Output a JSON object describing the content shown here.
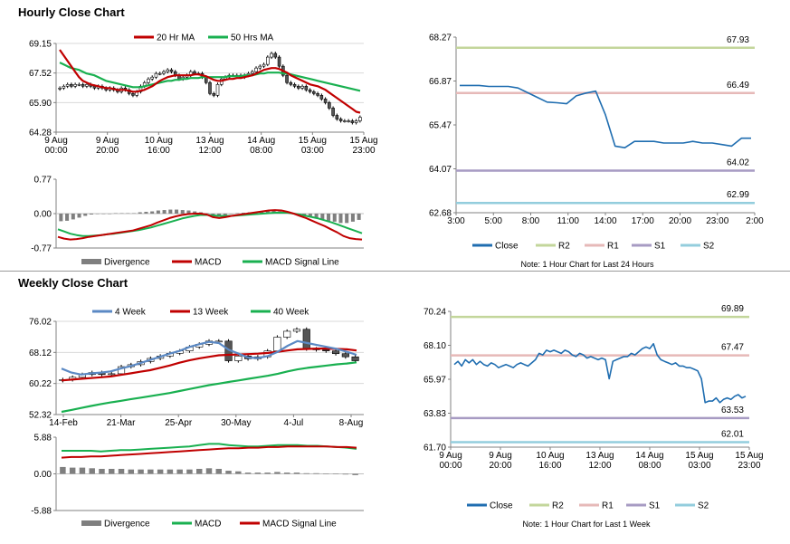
{
  "page": {
    "hourly_title": "Hourly Close Chart",
    "weekly_title": "Weekly Close Chart"
  },
  "colors": {
    "up_candle": "#ffffff",
    "down_candle": "#555555",
    "ma20": "#c00000",
    "ma50": "#19b050",
    "ma4": "#5b89c4",
    "ma13": "#c00000",
    "ma40": "#19b050",
    "macd_red": "#c00000",
    "macd_green": "#19b050",
    "divergence": "#7f7f7f",
    "close": "#1f6db0",
    "r2": "#c3d69b",
    "r1": "#e6b9b8",
    "s1": "#a79bc3",
    "s2": "#93cddd"
  },
  "chart_data": [
    {
      "id": "hourly_candle",
      "type": "candlestick",
      "ylim": [
        64.28,
        69.15
      ],
      "yticks": [
        "69.15",
        "67.52",
        "65.90",
        "64.28"
      ],
      "xticks": [
        "9 Aug\n00:00",
        "9 Aug\n20:00",
        "10 Aug\n16:00",
        "13 Aug\n12:00",
        "14 Aug\n08:00",
        "15 Aug\n03:00",
        "15 Aug\n23:00"
      ],
      "legend": [
        "20 Hr MA",
        "50 Hrs MA"
      ],
      "closes": [
        66.7,
        66.8,
        66.9,
        66.8,
        66.9,
        66.9,
        66.8,
        66.9,
        66.8,
        66.7,
        66.8,
        66.7,
        66.6,
        66.7,
        66.6,
        66.5,
        66.7,
        66.6,
        66.4,
        66.3,
        66.5,
        66.8,
        67.0,
        67.2,
        67.3,
        67.5,
        67.5,
        67.6,
        67.7,
        67.6,
        67.4,
        67.2,
        67.3,
        67.4,
        67.6,
        67.5,
        67.5,
        67.3,
        67.0,
        66.4,
        66.3,
        66.9,
        67.2,
        67.3,
        67.4,
        67.4,
        67.4,
        67.3,
        67.4,
        67.5,
        67.6,
        67.8,
        67.9,
        68.0,
        68.4,
        68.6,
        68.4,
        67.9,
        67.4,
        67.0,
        66.9,
        66.8,
        66.7,
        66.8,
        66.6,
        66.5,
        66.4,
        66.3,
        66.1,
        65.9,
        65.6,
        65.2,
        65.0,
        64.9,
        64.9,
        64.9,
        64.8,
        64.9,
        65.1
      ],
      "ma20": [
        68.8,
        68.5,
        68.2,
        67.9,
        67.6,
        67.3,
        67.1,
        67.0,
        66.9,
        66.85,
        66.8,
        66.75,
        66.7,
        66.7,
        66.65,
        66.6,
        66.6,
        66.6,
        66.55,
        66.5,
        66.5,
        66.55,
        66.6,
        66.7,
        66.8,
        66.95,
        67.1,
        67.2,
        67.3,
        67.35,
        67.4,
        67.4,
        67.4,
        67.4,
        67.4,
        67.45,
        67.45,
        67.4,
        67.35,
        67.25,
        67.15,
        67.1,
        67.1,
        67.15,
        67.2,
        67.2,
        67.25,
        67.25,
        67.3,
        67.35,
        67.4,
        67.5,
        67.6,
        67.7,
        67.75,
        67.8,
        67.8,
        67.75,
        67.65,
        67.55,
        67.4,
        67.3,
        67.2,
        67.1,
        67.0,
        66.9,
        66.85,
        66.8,
        66.7,
        66.6,
        66.45,
        66.3,
        66.15,
        66.0,
        65.85,
        65.7,
        65.55,
        65.4,
        65.35
      ],
      "ma50": [
        68.1,
        68.0,
        67.9,
        67.8,
        67.75,
        67.7,
        67.6,
        67.5,
        67.45,
        67.4,
        67.3,
        67.2,
        67.1,
        67.05,
        67.0,
        66.95,
        66.9,
        66.85,
        66.8,
        66.75,
        66.75,
        66.75,
        66.8,
        66.85,
        66.9,
        66.95,
        67.0,
        67.05,
        67.1,
        67.1,
        67.15,
        67.15,
        67.2,
        67.2,
        67.25,
        67.25,
        67.25,
        67.3,
        67.3,
        67.3,
        67.3,
        67.3,
        67.3,
        67.3,
        67.35,
        67.35,
        67.35,
        67.35,
        67.4,
        67.4,
        67.4,
        67.45,
        67.5,
        67.5,
        67.55,
        67.55,
        67.55,
        67.55,
        67.5,
        67.5,
        67.45,
        67.4,
        67.35,
        67.3,
        67.25,
        67.2,
        67.15,
        67.1,
        67.05,
        67.0,
        66.95,
        66.9,
        66.85,
        66.8,
        66.75,
        66.7,
        66.65,
        66.6,
        66.55
      ]
    },
    {
      "id": "hourly_macd",
      "type": "line",
      "ylim": [
        -0.77,
        0.77
      ],
      "yticks": [
        "0.77",
        "0.00",
        "-0.77"
      ],
      "legend": [
        "Divergence",
        "MACD",
        "MACD Signal Line"
      ],
      "macd": [
        -0.52,
        -0.56,
        -0.58,
        -0.57,
        -0.55,
        -0.52,
        -0.5,
        -0.48,
        -0.46,
        -0.44,
        -0.42,
        -0.4,
        -0.38,
        -0.34,
        -0.3,
        -0.26,
        -0.2,
        -0.15,
        -0.1,
        -0.06,
        -0.03,
        -0.01,
        0.0,
        0.0,
        -0.02,
        -0.08,
        -0.1,
        -0.08,
        -0.05,
        -0.03,
        -0.01,
        0.01,
        0.03,
        0.05,
        0.07,
        0.08,
        0.07,
        0.04,
        0.0,
        -0.05,
        -0.1,
        -0.16,
        -0.22,
        -0.28,
        -0.35,
        -0.42,
        -0.5,
        -0.55,
        -0.57,
        -0.58
      ],
      "signal": [
        -0.35,
        -0.4,
        -0.45,
        -0.48,
        -0.5,
        -0.5,
        -0.49,
        -0.48,
        -0.46,
        -0.45,
        -0.43,
        -0.41,
        -0.39,
        -0.37,
        -0.34,
        -0.31,
        -0.27,
        -0.23,
        -0.19,
        -0.15,
        -0.11,
        -0.08,
        -0.05,
        -0.03,
        -0.03,
        -0.04,
        -0.05,
        -0.05,
        -0.05,
        -0.04,
        -0.03,
        -0.02,
        -0.01,
        0.0,
        0.01,
        0.02,
        0.02,
        0.02,
        0.0,
        -0.02,
        -0.05,
        -0.08,
        -0.11,
        -0.15,
        -0.19,
        -0.24,
        -0.29,
        -0.34,
        -0.39,
        -0.44
      ],
      "divergence": [
        -0.17,
        -0.16,
        -0.13,
        -0.09,
        -0.05,
        -0.02,
        -0.01,
        0.0,
        0.0,
        0.01,
        0.01,
        0.01,
        0.01,
        0.03,
        0.04,
        0.05,
        0.07,
        0.08,
        0.09,
        0.09,
        0.08,
        0.07,
        0.05,
        0.03,
        0.01,
        -0.04,
        -0.05,
        -0.03,
        0.0,
        0.01,
        0.02,
        0.03,
        0.04,
        0.05,
        0.06,
        0.06,
        0.05,
        0.02,
        0.0,
        -0.03,
        -0.05,
        -0.08,
        -0.11,
        -0.13,
        -0.16,
        -0.18,
        -0.21,
        -0.21,
        -0.18,
        -0.14
      ]
    },
    {
      "id": "hourly_pivot",
      "type": "line",
      "ylim": [
        62.68,
        68.27
      ],
      "yticks": [
        "68.27",
        "66.87",
        "65.47",
        "64.07",
        "62.68"
      ],
      "xticks": [
        "3:00",
        "5:00",
        "8:00",
        "11:00",
        "14:00",
        "17:00",
        "20:00",
        "23:00",
        "2:00"
      ],
      "legend": [
        "Close",
        "R2",
        "R1",
        "S1",
        "S2"
      ],
      "note": "Note: 1 Hour Chart for Last 24 Hours",
      "levels": {
        "R2": 67.93,
        "R1": 66.49,
        "S1": 64.02,
        "S2": 62.99
      },
      "level_labels": {
        "R2": "67.93",
        "R1": "66.49",
        "S1": "64.02",
        "S2": "62.99"
      },
      "close": [
        66.73,
        66.73,
        66.73,
        66.7,
        66.7,
        66.7,
        66.65,
        66.5,
        66.35,
        66.2,
        66.18,
        66.15,
        66.4,
        66.49,
        66.55,
        65.8,
        64.8,
        64.75,
        64.95,
        64.95,
        64.95,
        64.9,
        64.9,
        64.9,
        64.95,
        64.9,
        64.9,
        64.85,
        64.8,
        65.05,
        65.05
      ]
    },
    {
      "id": "weekly_candle",
      "type": "candlestick",
      "ylim": [
        52.32,
        76.02
      ],
      "yticks": [
        "76.02",
        "68.12",
        "60.22",
        "52.32"
      ],
      "xticks": [
        "14-Feb",
        "21-Mar",
        "25-Apr",
        "30-May",
        "4-Jul",
        "8-Aug"
      ],
      "legend": [
        "4 Week",
        "13 Week",
        "40 Week"
      ],
      "closes": [
        61.2,
        61.8,
        62.5,
        63.0,
        62.5,
        62.7,
        64.5,
        65.0,
        65.8,
        66.6,
        67.2,
        67.9,
        68.5,
        69.5,
        70.2,
        71.0,
        71.0,
        66.0,
        67.2,
        66.5,
        67.0,
        68.5,
        72.0,
        73.5,
        74.0,
        69.0,
        68.8,
        68.5,
        67.8,
        67.0,
        66.0
      ],
      "ma4": [
        64.0,
        63.0,
        62.5,
        62.8,
        63.0,
        63.3,
        64.0,
        64.6,
        65.4,
        66.2,
        67.0,
        67.8,
        68.5,
        69.5,
        70.2,
        70.8,
        70.5,
        68.8,
        67.8,
        66.8,
        66.7,
        67.2,
        68.3,
        69.8,
        71.0,
        70.5,
        70.0,
        69.5,
        69.0,
        68.3,
        67.5
      ],
      "ma13": [
        61.0,
        61.2,
        61.4,
        61.6,
        61.8,
        62.0,
        62.4,
        62.8,
        63.2,
        63.6,
        64.2,
        64.8,
        65.5,
        66.1,
        66.6,
        67.0,
        67.4,
        67.5,
        67.6,
        67.7,
        67.8,
        68.0,
        68.3,
        68.6,
        68.9,
        69.0,
        69.1,
        69.1,
        69.0,
        68.9,
        68.6
      ],
      "ma40": [
        53.0,
        53.5,
        54.0,
        54.5,
        55.0,
        55.4,
        55.8,
        56.2,
        56.6,
        57.0,
        57.4,
        57.8,
        58.3,
        58.8,
        59.3,
        59.8,
        60.2,
        60.6,
        61.0,
        61.4,
        61.8,
        62.2,
        62.7,
        63.3,
        63.8,
        64.2,
        64.5,
        64.8,
        65.1,
        65.3,
        65.6
      ]
    },
    {
      "id": "weekly_macd",
      "type": "line",
      "ylim": [
        -5.88,
        5.88
      ],
      "yticks": [
        "5.88",
        "0.00",
        "-5.88"
      ],
      "legend": [
        "Divergence",
        "MACD",
        "MACD Signal Line"
      ],
      "macd": [
        3.7,
        3.7,
        3.7,
        3.7,
        3.6,
        3.7,
        3.8,
        3.8,
        3.9,
        4.0,
        4.1,
        4.2,
        4.3,
        4.4,
        4.6,
        4.8,
        4.8,
        4.6,
        4.5,
        4.4,
        4.4,
        4.5,
        4.6,
        4.6,
        4.6,
        4.5,
        4.5,
        4.4,
        4.3,
        4.2,
        4.0
      ],
      "signal": [
        2.6,
        2.7,
        2.7,
        2.8,
        2.8,
        2.9,
        3.0,
        3.1,
        3.2,
        3.3,
        3.4,
        3.5,
        3.6,
        3.7,
        3.8,
        3.9,
        4.0,
        4.1,
        4.1,
        4.2,
        4.2,
        4.3,
        4.3,
        4.4,
        4.4,
        4.4,
        4.4,
        4.4,
        4.3,
        4.3,
        4.2
      ],
      "divergence": [
        1.1,
        1.0,
        1.0,
        0.9,
        0.8,
        0.8,
        0.8,
        0.7,
        0.7,
        0.7,
        0.7,
        0.7,
        0.7,
        0.7,
        0.8,
        0.9,
        0.8,
        0.5,
        0.4,
        0.2,
        0.2,
        0.2,
        0.3,
        0.2,
        0.2,
        0.1,
        0.1,
        0.0,
        0.0,
        -0.1,
        -0.2
      ]
    },
    {
      "id": "weekly_pivot",
      "type": "line",
      "ylim": [
        61.7,
        70.24
      ],
      "yticks": [
        "70.24",
        "68.10",
        "65.97",
        "63.83",
        "61.70"
      ],
      "xticks": [
        "9 Aug\n00:00",
        "9 Aug\n20:00",
        "10 Aug\n16:00",
        "13 Aug\n12:00",
        "14 Aug\n08:00",
        "15 Aug\n03:00",
        "15 Aug\n23:00"
      ],
      "legend": [
        "Close",
        "R2",
        "R1",
        "S1",
        "S2"
      ],
      "note": "Note: 1 Hour Chart for Last 1 Week",
      "levels": {
        "R2": 69.89,
        "R1": 67.47,
        "S1": 63.53,
        "S2": 62.01
      },
      "level_labels": {
        "R2": "69.89",
        "R1": "67.47",
        "S1": "63.53",
        "S2": "62.01"
      },
      "close": [
        66.9,
        67.1,
        66.8,
        67.2,
        67.0,
        67.2,
        66.9,
        67.1,
        66.9,
        66.8,
        67.0,
        66.9,
        66.7,
        66.8,
        66.9,
        66.8,
        66.7,
        66.9,
        67.0,
        66.9,
        66.8,
        67.0,
        67.2,
        67.6,
        67.5,
        67.8,
        67.7,
        67.8,
        67.7,
        67.6,
        67.8,
        67.7,
        67.5,
        67.4,
        67.6,
        67.5,
        67.3,
        67.4,
        67.3,
        67.2,
        67.3,
        67.2,
        66.0,
        67.1,
        67.2,
        67.3,
        67.4,
        67.4,
        67.6,
        67.5,
        67.7,
        67.9,
        68.0,
        67.9,
        68.2,
        67.5,
        67.2,
        67.1,
        67.0,
        66.9,
        67.0,
        66.8,
        66.8,
        66.7,
        66.7,
        66.6,
        66.5,
        66.0,
        64.5,
        64.6,
        64.6,
        64.8,
        64.5,
        64.7,
        64.8,
        64.7,
        64.9,
        65.0,
        64.8,
        64.9
      ]
    }
  ]
}
